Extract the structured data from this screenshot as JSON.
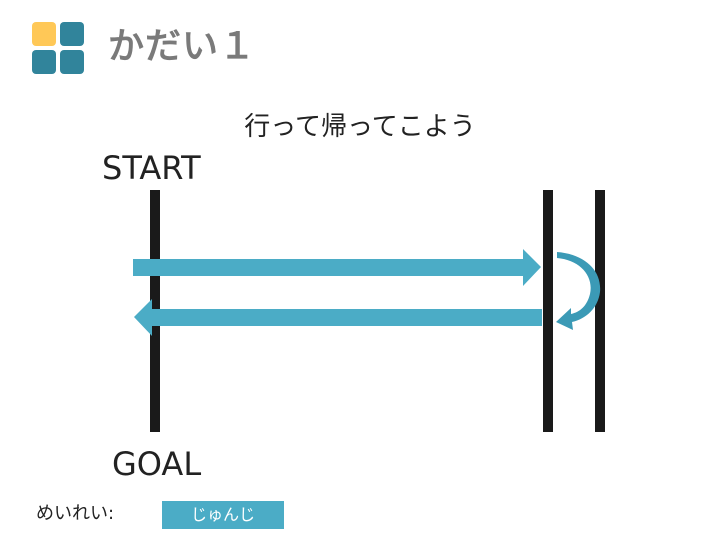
{
  "header": {
    "title": "かだい１"
  },
  "diagram": {
    "instruction": "行って帰ってこよう",
    "start_label": "START",
    "goal_label": "GOAL"
  },
  "example": {
    "label": "めいれい:",
    "button_label": "じゅんじ"
  },
  "colors": {
    "arrow": "#4bacc6",
    "turn_arrow": "#3b9ab6",
    "line": "#1a1a1a",
    "logo_yellow": "#ffc857",
    "logo_teal": "#31849b",
    "title_gray": "#7a7a7a"
  }
}
